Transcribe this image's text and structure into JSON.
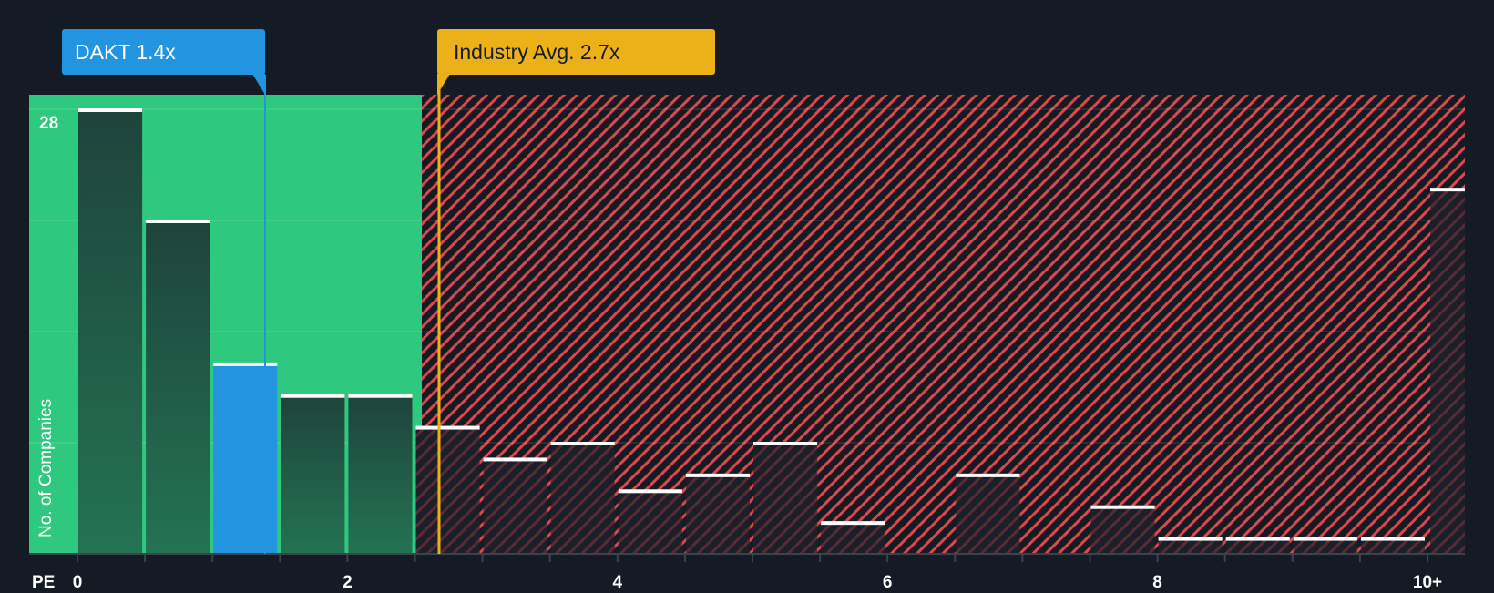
{
  "header": {
    "company_label": "DAKT 1.4x",
    "industry_label": "Industry Avg. 2.7x"
  },
  "axes": {
    "y_title": "No. of Companies",
    "y_top_tick": "28",
    "x_title": "PE",
    "x_ticks": [
      "0",
      "2",
      "4",
      "6",
      "8",
      "10+"
    ]
  },
  "colors": {
    "background": "#151b24",
    "undervalued_zone": "#2ec97e",
    "overvalued_hatch": "#e0464a",
    "company_bar": "#2394e0",
    "industry_line": "#ecb118",
    "bar_top": "#ffffff"
  },
  "chart_data": {
    "type": "bar",
    "title": "",
    "xlabel": "PE",
    "ylabel": "No. of Companies",
    "bin_width": 0.5,
    "categories": [
      "0-0.5",
      "0.5-1",
      "1-1.5",
      "1.5-2",
      "2-2.5",
      "2.5-3",
      "3-3.5",
      "3.5-4",
      "4-4.5",
      "4.5-5",
      "5-5.5",
      "5.5-6",
      "6-6.5",
      "6.5-7",
      "7-7.5",
      "7.5-8",
      "8-8.5",
      "8.5-9",
      "9-9.5",
      "9.5-10",
      "10+"
    ],
    "values": [
      28,
      21,
      12,
      10,
      10,
      8,
      6,
      7,
      4,
      5,
      7,
      2,
      0,
      5,
      0,
      3,
      1,
      1,
      1,
      1,
      23
    ],
    "ylim": [
      0,
      29
    ],
    "y_gridlines": [
      0,
      7,
      14,
      21,
      28
    ],
    "x_tick_labels": [
      "0",
      "2",
      "4",
      "6",
      "8",
      "10+"
    ],
    "highlight": {
      "label": "DAKT",
      "value": 1.4,
      "bin": "1-1.5"
    },
    "reference_line": {
      "label": "Industry Avg.",
      "value": 2.7
    },
    "shaded_regions": [
      {
        "type": "undervalued",
        "from": 0,
        "to": 2.7,
        "color": "#2ec97e"
      },
      {
        "type": "overvalued",
        "from": 2.7,
        "to": "10+",
        "pattern": "hatched-red"
      }
    ],
    "grid": true,
    "legend": "none"
  }
}
